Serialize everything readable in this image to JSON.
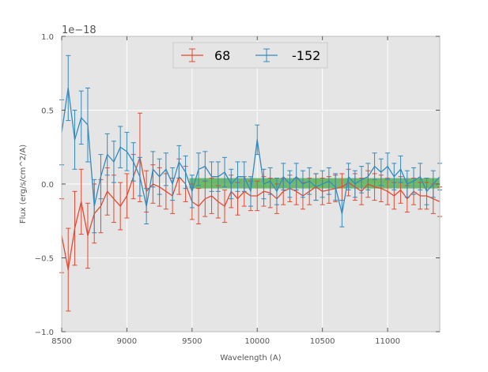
{
  "chart_data": {
    "type": "line",
    "title": "",
    "xlabel": "Wavelength (A)",
    "ylabel": "Flux (erg/s/cm^2/A)",
    "offset_label": "1e−18",
    "xlim": [
      8500,
      11400
    ],
    "ylim": [
      -1.0,
      1.0
    ],
    "x_ticks": [
      8500,
      9000,
      9500,
      10000,
      10500,
      11000
    ],
    "x_tick_labels": [
      "8500",
      "9000",
      "9500",
      "10000",
      "10500",
      "11000"
    ],
    "y_ticks": [
      -1.0,
      -0.5,
      0.0,
      0.5,
      1.0
    ],
    "y_tick_labels": [
      "−1.0",
      "−0.5",
      "0.0",
      "0.5",
      "1.0"
    ],
    "grid": true,
    "legend_position": "top-center",
    "band": {
      "x_start": 9480,
      "x_end": 11400,
      "y_low": -0.03,
      "y_high": 0.04,
      "color": "#2ca02c"
    },
    "series": [
      {
        "name": "68",
        "color": "#e24a33",
        "x": [
          8500,
          8550,
          8600,
          8650,
          8700,
          8750,
          8800,
          8850,
          8900,
          8950,
          9000,
          9050,
          9100,
          9150,
          9200,
          9250,
          9300,
          9350,
          9400,
          9450,
          9500,
          9550,
          9600,
          9650,
          9700,
          9750,
          9800,
          9850,
          9900,
          9950,
          10000,
          10050,
          10100,
          10150,
          10200,
          10250,
          10300,
          10350,
          10400,
          10450,
          10500,
          10550,
          10600,
          10650,
          10700,
          10750,
          10800,
          10850,
          10900,
          10950,
          11000,
          11050,
          11100,
          11150,
          11200,
          11250,
          11300,
          11350,
          11400
        ],
        "values": [
          -0.35,
          -0.58,
          -0.3,
          -0.12,
          -0.35,
          -0.2,
          -0.15,
          -0.05,
          -0.1,
          -0.15,
          -0.08,
          0.05,
          0.18,
          -0.05,
          0.0,
          -0.02,
          -0.05,
          -0.08,
          0.05,
          0.0,
          -0.12,
          -0.15,
          -0.1,
          -0.08,
          -0.12,
          -0.15,
          -0.05,
          -0.1,
          -0.05,
          -0.08,
          -0.08,
          -0.05,
          -0.06,
          -0.1,
          -0.05,
          -0.03,
          -0.05,
          -0.08,
          -0.05,
          -0.02,
          -0.05,
          -0.04,
          -0.03,
          -0.02,
          0.01,
          -0.02,
          -0.05,
          0.0,
          -0.02,
          -0.03,
          -0.05,
          -0.08,
          -0.04,
          -0.1,
          -0.05,
          -0.08,
          -0.08,
          -0.1,
          -0.12
        ],
        "errors": [
          0.25,
          0.28,
          0.25,
          0.22,
          0.22,
          0.2,
          0.18,
          0.16,
          0.16,
          0.16,
          0.15,
          0.15,
          0.3,
          0.14,
          0.13,
          0.13,
          0.12,
          0.12,
          0.12,
          0.12,
          0.12,
          0.12,
          0.12,
          0.12,
          0.11,
          0.11,
          0.11,
          0.11,
          0.1,
          0.1,
          0.1,
          0.1,
          0.1,
          0.1,
          0.09,
          0.09,
          0.09,
          0.09,
          0.09,
          0.09,
          0.09,
          0.09,
          0.09,
          0.09,
          0.09,
          0.09,
          0.09,
          0.09,
          0.09,
          0.09,
          0.09,
          0.09,
          0.09,
          0.09,
          0.09,
          0.09,
          0.09,
          0.1,
          0.1
        ]
      },
      {
        "name": "-152",
        "color": "#348abd",
        "x": [
          8500,
          8550,
          8600,
          8650,
          8700,
          8750,
          8800,
          8850,
          8900,
          8950,
          9000,
          9050,
          9100,
          9150,
          9200,
          9250,
          9300,
          9350,
          9400,
          9450,
          9500,
          9550,
          9600,
          9650,
          9700,
          9750,
          9800,
          9850,
          9900,
          9950,
          10000,
          10050,
          10100,
          10150,
          10200,
          10250,
          10300,
          10350,
          10400,
          10450,
          10500,
          10550,
          10600,
          10650,
          10700,
          10750,
          10800,
          10850,
          10900,
          10950,
          11000,
          11050,
          11100,
          11150,
          11200,
          11250,
          11300,
          11350,
          11400
        ],
        "values": [
          0.35,
          0.65,
          0.3,
          0.45,
          0.4,
          -0.15,
          0.05,
          0.2,
          0.15,
          0.25,
          0.22,
          0.15,
          0.05,
          -0.15,
          0.1,
          0.05,
          0.1,
          0.0,
          0.15,
          0.08,
          -0.05,
          0.1,
          0.12,
          0.05,
          0.05,
          0.08,
          0.0,
          0.05,
          0.05,
          -0.05,
          0.3,
          0.0,
          0.02,
          -0.05,
          0.05,
          0.0,
          0.05,
          0.0,
          0.02,
          -0.02,
          0.0,
          0.02,
          -0.02,
          -0.2,
          0.05,
          0.0,
          0.03,
          0.05,
          0.12,
          0.08,
          0.12,
          0.05,
          0.1,
          0.0,
          0.02,
          0.05,
          -0.05,
          0.0,
          0.05
        ],
        "errors": [
          0.22,
          0.22,
          0.2,
          0.18,
          0.25,
          0.18,
          0.15,
          0.14,
          0.14,
          0.14,
          0.13,
          0.13,
          0.13,
          0.12,
          0.12,
          0.12,
          0.11,
          0.11,
          0.11,
          0.11,
          0.11,
          0.11,
          0.1,
          0.1,
          0.1,
          0.1,
          0.1,
          0.1,
          0.1,
          0.1,
          0.1,
          0.1,
          0.09,
          0.09,
          0.09,
          0.09,
          0.09,
          0.09,
          0.09,
          0.09,
          0.09,
          0.09,
          0.09,
          0.09,
          0.09,
          0.09,
          0.09,
          0.09,
          0.09,
          0.09,
          0.09,
          0.09,
          0.09,
          0.09,
          0.09,
          0.09,
          0.09,
          0.09,
          0.09
        ]
      }
    ]
  }
}
